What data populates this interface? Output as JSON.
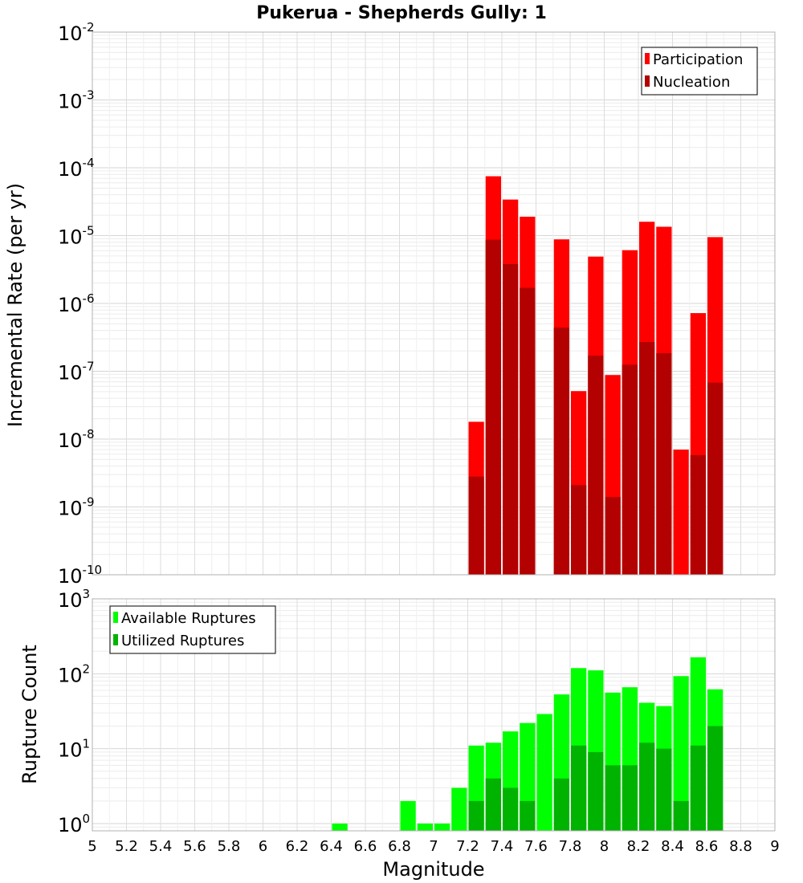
{
  "chart_data": {
    "title": "Pukerua - Shepherds Gully: 1",
    "xlabel": "Magnitude",
    "xlim": [
      5,
      9
    ],
    "xticks": [
      "5",
      "5.2",
      "5.4",
      "5.6",
      "5.8",
      "6",
      "6.2",
      "6.4",
      "6.6",
      "6.8",
      "7",
      "7.2",
      "7.4",
      "7.6",
      "7.8",
      "8",
      "8.2",
      "8.4",
      "8.6",
      "8.8",
      "9"
    ],
    "panels": [
      {
        "type": "bar",
        "ylabel": "Incremental Rate (per yr)",
        "yscale": "log",
        "ylim": [
          1e-10,
          0.01
        ],
        "yticks": [
          {
            "base": "10",
            "exp": "-10"
          },
          {
            "base": "10",
            "exp": "-9"
          },
          {
            "base": "10",
            "exp": "-8"
          },
          {
            "base": "10",
            "exp": "-7"
          },
          {
            "base": "10",
            "exp": "-6"
          },
          {
            "base": "10",
            "exp": "-5"
          },
          {
            "base": "10",
            "exp": "-4"
          },
          {
            "base": "10",
            "exp": "-3"
          },
          {
            "base": "10",
            "exp": "-2"
          }
        ],
        "legend_position": "top-right",
        "x": [
          7.25,
          7.35,
          7.45,
          7.55,
          7.65,
          7.75,
          7.85,
          7.95,
          8.05,
          8.15,
          8.25,
          8.35,
          8.45,
          8.55,
          8.65
        ],
        "series": [
          {
            "name": "Participation",
            "color": "#ff0000",
            "values": [
              1.8e-08,
              7.5e-05,
              3.4e-05,
              1.9e-05,
              null,
              8.8e-06,
              5.1e-08,
              4.9e-06,
              8.8e-08,
              6.1e-06,
              1.6e-05,
              1.35e-05,
              7e-09,
              7.2e-07,
              9.5e-06
            ]
          },
          {
            "name": "Nucleation",
            "color": "#b30000",
            "values": [
              2.8e-09,
              8.7e-06,
              3.8e-06,
              1.7e-06,
              null,
              4.4e-07,
              2.1e-09,
              1.7e-07,
              1.4e-09,
              1.25e-07,
              2.7e-07,
              1.85e-07,
              null,
              5.8e-09,
              6.8e-08
            ]
          }
        ]
      },
      {
        "type": "bar",
        "ylabel": "Rupture Count",
        "yscale": "log",
        "ylim": [
          0.8,
          1000
        ],
        "yticks": [
          {
            "base": "10",
            "exp": "0"
          },
          {
            "base": "10",
            "exp": "1"
          },
          {
            "base": "10",
            "exp": "2"
          },
          {
            "base": "10",
            "exp": "3"
          }
        ],
        "legend_position": "top-left",
        "x": [
          6.45,
          6.85,
          6.95,
          7.05,
          7.15,
          7.25,
          7.35,
          7.45,
          7.55,
          7.65,
          7.75,
          7.85,
          7.95,
          8.05,
          8.15,
          8.25,
          8.35,
          8.45,
          8.55,
          8.65
        ],
        "series": [
          {
            "name": "Available Ruptures",
            "color": "#00ff00",
            "values": [
              1,
              2,
              1,
              1,
              3,
              11,
              12,
              17,
              22,
              29,
              53,
              119,
              111,
              56,
              66,
              41,
              37,
              93,
              166,
              62
            ]
          },
          {
            "name": "Utilized Ruptures",
            "color": "#00b300",
            "values": [
              null,
              null,
              null,
              null,
              null,
              2,
              4,
              3,
              2,
              null,
              4,
              11,
              9,
              6,
              6,
              12,
              10,
              2,
              11,
              20
            ]
          }
        ]
      }
    ]
  }
}
